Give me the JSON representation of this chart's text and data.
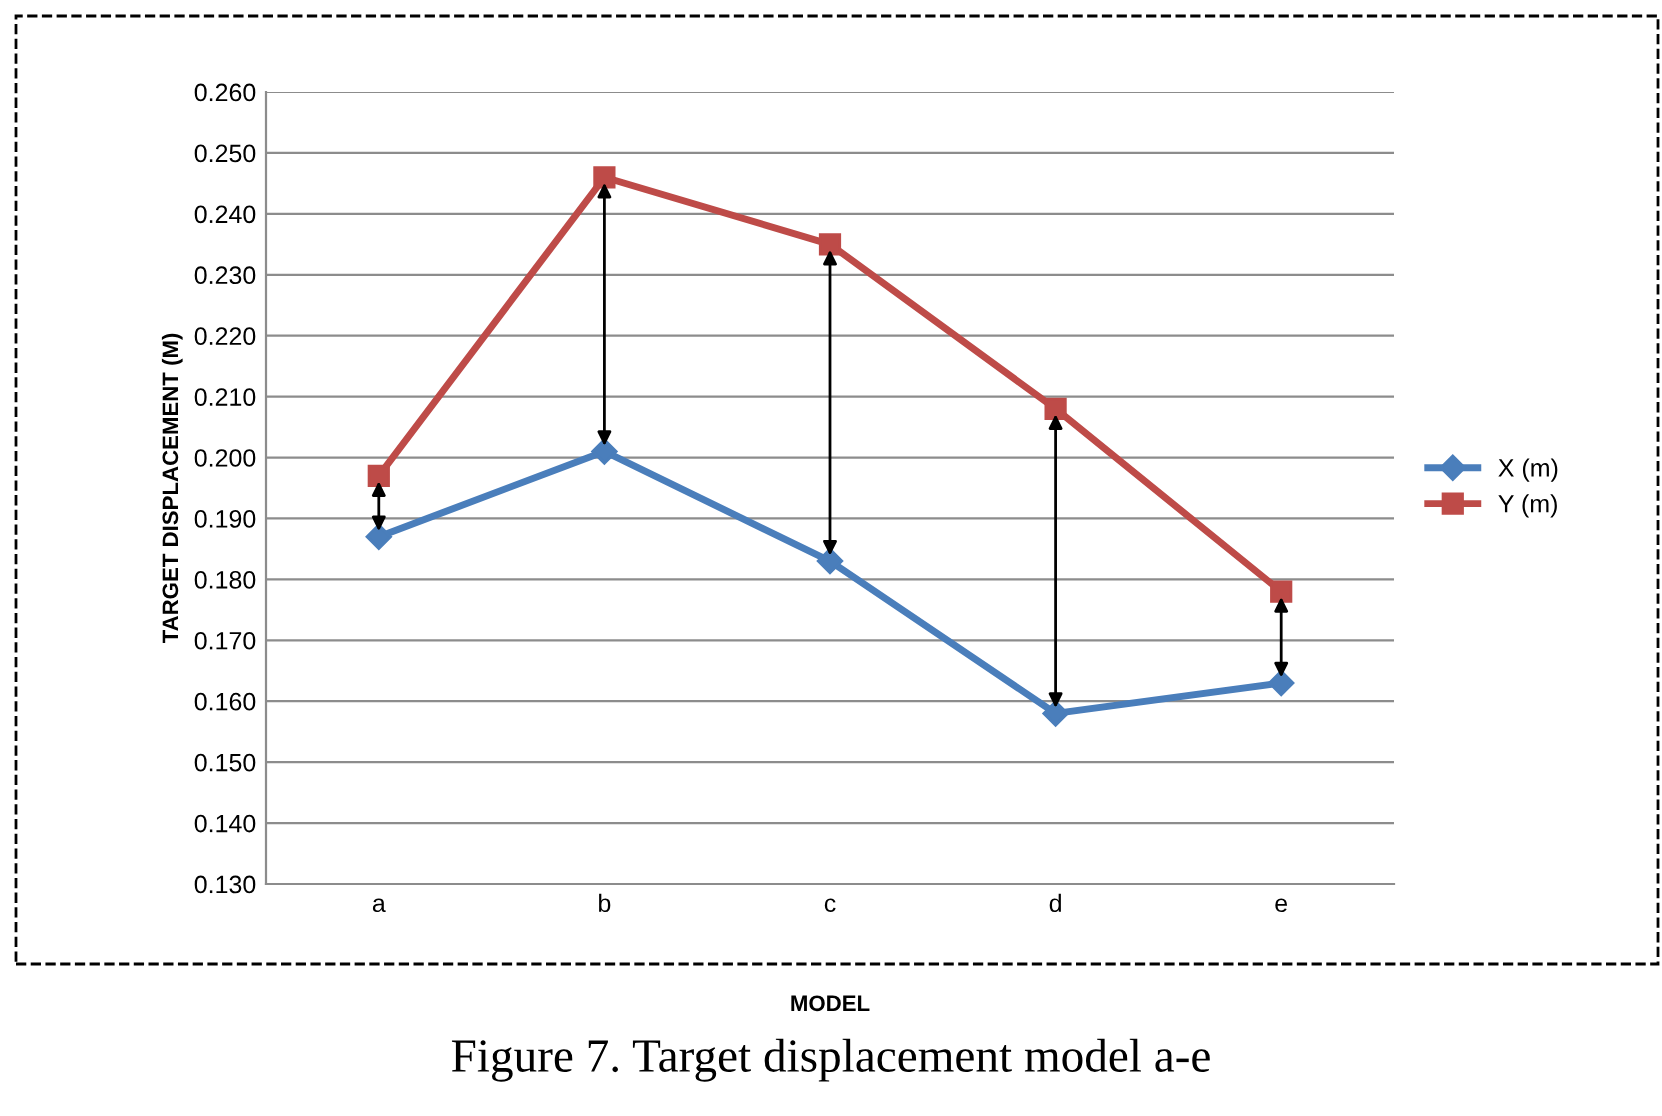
{
  "chart_data": {
    "type": "line",
    "xlabel": "MODEL",
    "ylabel": "TARGET DISPLACEMENT (M)",
    "categories": [
      "a",
      "b",
      "c",
      "d",
      "e"
    ],
    "series": [
      {
        "name": "X (m)",
        "color": "#4a7ebb",
        "marker": "diamond",
        "values": [
          0.187,
          0.201,
          0.183,
          0.158,
          0.163
        ]
      },
      {
        "name": "Y (m)",
        "color": "#be4b48",
        "marker": "square",
        "values": [
          0.197,
          0.246,
          0.235,
          0.208,
          0.178
        ]
      }
    ],
    "ylim": [
      0.13,
      0.26
    ],
    "yticks": [
      {
        "value": 0.13,
        "label": "0.130"
      },
      {
        "value": 0.14,
        "label": "0.140"
      },
      {
        "value": 0.15,
        "label": "0.150"
      },
      {
        "value": 0.16,
        "label": "0.160"
      },
      {
        "value": 0.17,
        "label": "0.170"
      },
      {
        "value": 0.18,
        "label": "0.180"
      },
      {
        "value": 0.19,
        "label": "0.190"
      },
      {
        "value": 0.2,
        "label": "0.200"
      },
      {
        "value": 0.21,
        "label": "0.210"
      },
      {
        "value": 0.22,
        "label": "0.220"
      },
      {
        "value": 0.23,
        "label": "0.230"
      },
      {
        "value": 0.24,
        "label": "0.240"
      },
      {
        "value": 0.25,
        "label": "0.250"
      },
      {
        "value": 0.26,
        "label": "0.260"
      }
    ],
    "grid": "y",
    "legend": "right",
    "line_style": "solid",
    "annotations": [
      "Figure 7. Target displacement model a-e"
    ]
  }
}
